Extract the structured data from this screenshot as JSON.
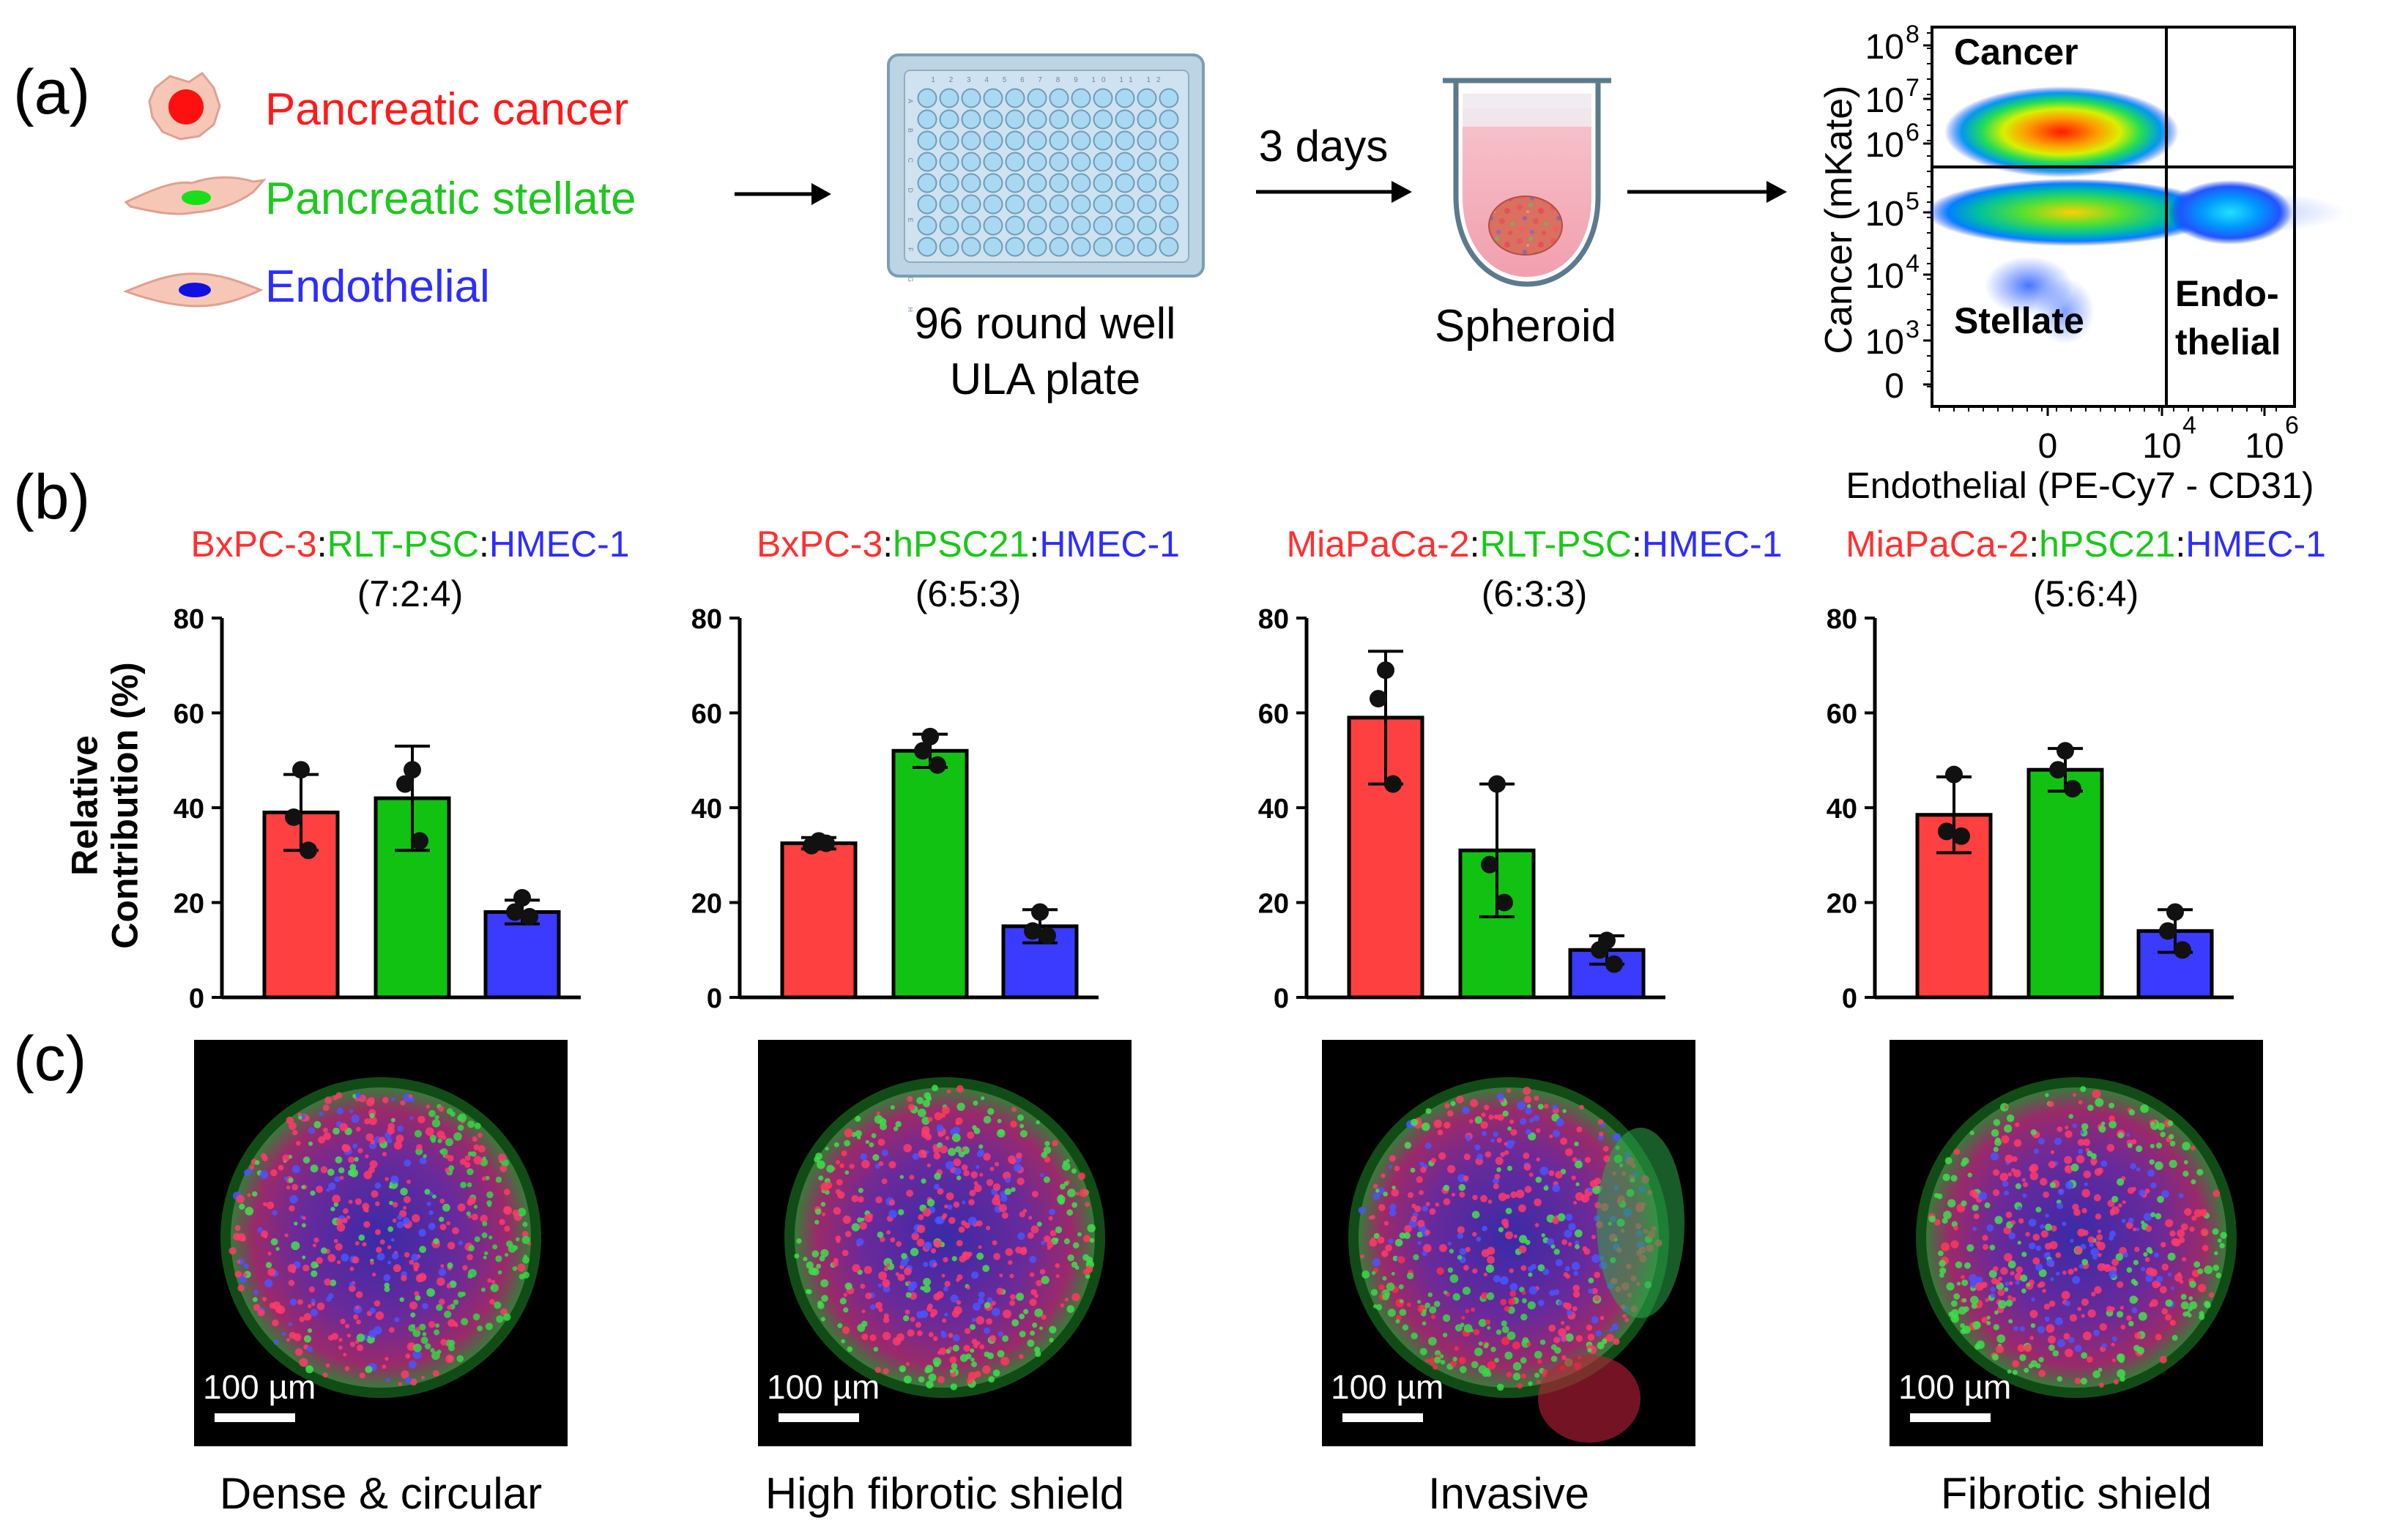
{
  "panels": {
    "a": "(a)",
    "b": "(b)",
    "c": "(c)"
  },
  "legend": {
    "items": [
      {
        "label": "Pancreatic cancer",
        "color": "#ff1a1a",
        "icon": "cancer-cell-icon"
      },
      {
        "label": "Pancreatic stellate",
        "color": "#1ec81e",
        "icon": "stellate-cell-icon"
      },
      {
        "label": "Endothelial",
        "color": "#2d2dff",
        "icon": "endothelial-cell-icon"
      }
    ]
  },
  "workflow": {
    "plate_label_1": "96 round well",
    "plate_label_2": "ULA plate",
    "days_label": "3 days",
    "spheroid_label": "Spheroid",
    "plate_icon": "well-plate-icon",
    "spheroid_icon": "spheroid-tube-icon",
    "plate_header": "1 2 3 4 5 6 7 8 9 10 11 12",
    "plate_rows": "A B C D E F G H"
  },
  "flow": {
    "ylabel": "Cancer (mKate)",
    "xlabel": "Endothelial (PE-Cy7 - CD31)",
    "q_cancer": "Cancer",
    "q_stellate": "Stellate",
    "q_endo1": "Endo-",
    "q_endo2": "thelial",
    "y_ticks": [
      {
        "base": "10",
        "exp": "8"
      },
      {
        "base": "10",
        "exp": "7"
      },
      {
        "base": "10",
        "exp": "6"
      },
      {
        "base": "10",
        "exp": "5"
      },
      {
        "base": "10",
        "exp": "4"
      },
      {
        "base": "10",
        "exp": "3"
      },
      {
        "base": "0",
        "exp": ""
      }
    ],
    "x_ticks": [
      {
        "base": "0",
        "exp": ""
      },
      {
        "base": "10",
        "exp": "4"
      },
      {
        "base": "10",
        "exp": "6"
      }
    ]
  },
  "chart_data": [
    {
      "type": "bar",
      "title_parts": [
        "BxPC-3",
        "RLT-PSC",
        "HMEC-1"
      ],
      "ratio": "(7:2:4)",
      "categories": [
        "Pancreatic cancer",
        "Pancreatic stellate",
        "Endothelial"
      ],
      "colors": [
        "#ff4040",
        "#12c212",
        "#3b3bff"
      ],
      "values": [
        39,
        42,
        18
      ],
      "errors": [
        8,
        11,
        2.5
      ],
      "points": [
        [
          48,
          38,
          31
        ],
        [
          48,
          45,
          33
        ],
        [
          21,
          18,
          17
        ]
      ],
      "ylim": [
        0,
        80
      ],
      "yticks": [
        "0",
        "20",
        "40",
        "60",
        "80"
      ],
      "ylabel": "Relative Contribution (%)",
      "image_caption": "Dense & circular"
    },
    {
      "type": "bar",
      "title_parts": [
        "BxPC-3",
        "hPSC21",
        "HMEC-1"
      ],
      "ratio": "(6:5:3)",
      "categories": [
        "Pancreatic cancer",
        "Pancreatic stellate",
        "Endothelial"
      ],
      "colors": [
        "#ff4040",
        "#12c212",
        "#3b3bff"
      ],
      "values": [
        32.5,
        52,
        15
      ],
      "errors": [
        1.2,
        3.5,
        3.5
      ],
      "points": [
        [
          33,
          32,
          32.5
        ],
        [
          55,
          52,
          49
        ],
        [
          18,
          14,
          13
        ]
      ],
      "ylim": [
        0,
        80
      ],
      "yticks": [
        "0",
        "20",
        "40",
        "60",
        "80"
      ],
      "ylabel": "",
      "image_caption": "High fibrotic shield"
    },
    {
      "type": "bar",
      "title_parts": [
        "MiaPaCa-2",
        "RLT-PSC",
        "HMEC-1"
      ],
      "ratio": "(6:3:3)",
      "categories": [
        "Pancreatic cancer",
        "Pancreatic stellate",
        "Endothelial"
      ],
      "colors": [
        "#ff4040",
        "#12c212",
        "#3b3bff"
      ],
      "values": [
        59,
        31,
        10
      ],
      "errors": [
        14,
        14,
        3
      ],
      "points": [
        [
          69,
          63,
          45
        ],
        [
          45,
          28,
          20
        ],
        [
          12,
          10,
          7
        ]
      ],
      "ylim": [
        0,
        80
      ],
      "yticks": [
        "0",
        "20",
        "40",
        "60",
        "80"
      ],
      "ylabel": "",
      "image_caption": "Invasive"
    },
    {
      "type": "bar",
      "title_parts": [
        "MiaPaCa-2",
        "hPSC21",
        "HMEC-1"
      ],
      "ratio": "(5:6:4)",
      "categories": [
        "Pancreatic cancer",
        "Pancreatic stellate",
        "Endothelial"
      ],
      "colors": [
        "#ff4040",
        "#12c212",
        "#3b3bff"
      ],
      "values": [
        38.5,
        48,
        14
      ],
      "errors": [
        8,
        4.5,
        4.5
      ],
      "points": [
        [
          47,
          35,
          34
        ],
        [
          52,
          48,
          44
        ],
        [
          18,
          14,
          10
        ]
      ],
      "ylim": [
        0,
        80
      ],
      "yticks": [
        "0",
        "20",
        "40",
        "60",
        "80"
      ],
      "ylabel": "",
      "image_caption": "Fibrotic shield"
    }
  ],
  "micrographs": {
    "scale_label": "100 µm"
  }
}
